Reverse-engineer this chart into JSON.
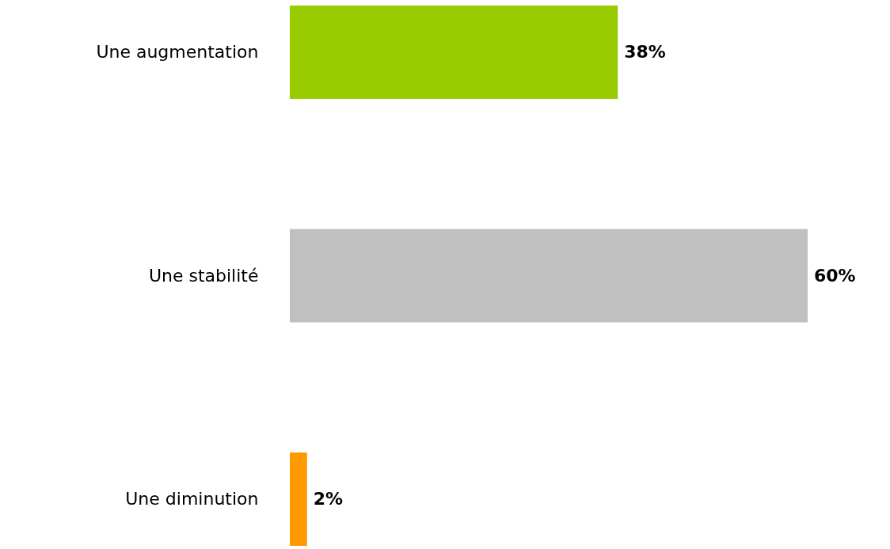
{
  "chart_data": {
    "type": "bar",
    "orientation": "horizontal",
    "categories": [
      "Une augmentation",
      "Une stabilité",
      "Une diminution"
    ],
    "values": [
      38,
      60,
      2
    ],
    "colors": [
      "#99cc00",
      "#c0c0c0",
      "#ff9900"
    ],
    "value_labels": [
      "38%",
      "60%",
      "2%"
    ]
  }
}
